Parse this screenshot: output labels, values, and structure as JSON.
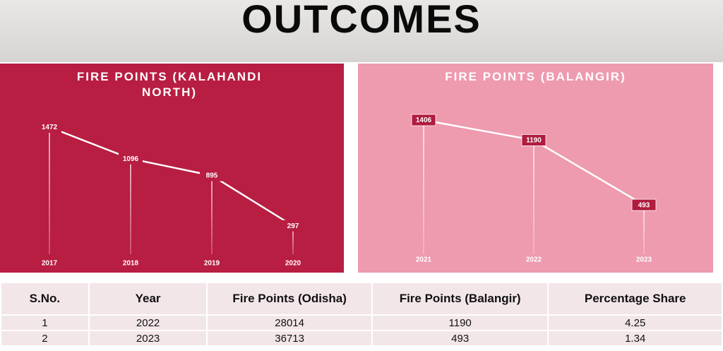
{
  "title": "OUTCOMES",
  "chart_data": [
    {
      "type": "line",
      "title": "FIRE POINTS (KALAHANDI NORTH)",
      "categories": [
        "2017",
        "2018",
        "2019",
        "2020"
      ],
      "values": [
        1472,
        1096,
        895,
        297
      ],
      "color": "#ffffff",
      "label_style": "plain"
    },
    {
      "type": "line",
      "title": "FIRE POINTS (BALANGIR)",
      "categories": [
        "2021",
        "2022",
        "2023"
      ],
      "values": [
        1406,
        1190,
        493
      ],
      "color": "#ffffff",
      "label_style": "boxed"
    }
  ],
  "table": {
    "header": [
      "S.No.",
      "Year",
      "Fire Points (Odisha)",
      "Fire Points (Balangir)",
      "Percentage Share"
    ],
    "rows": [
      [
        1,
        2022,
        28014,
        1190,
        4.25
      ],
      [
        2,
        2023,
        36713,
        493,
        1.34
      ]
    ]
  }
}
